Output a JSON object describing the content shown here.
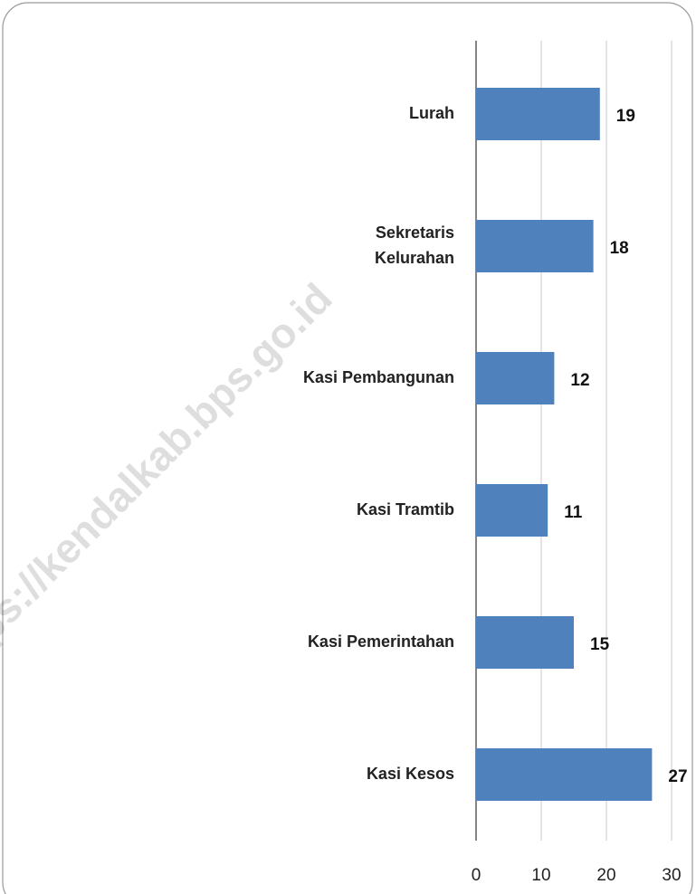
{
  "chart_data": {
    "type": "hbar",
    "categories": [
      "Lurah",
      "Sekretaris\nKelurahan",
      "Kasi Pembangunan",
      "Kasi Tramtib",
      "Kasi Pemerintahan",
      "Kasi Kesos"
    ],
    "values": [
      19,
      18,
      12,
      11,
      15,
      27
    ],
    "color": "#4f81bd",
    "xlim": [
      0,
      30
    ],
    "xticks": [
      0,
      10,
      20,
      30
    ],
    "grid": true,
    "annotations": [
      "https://kendalkab.bps.go.id"
    ]
  }
}
